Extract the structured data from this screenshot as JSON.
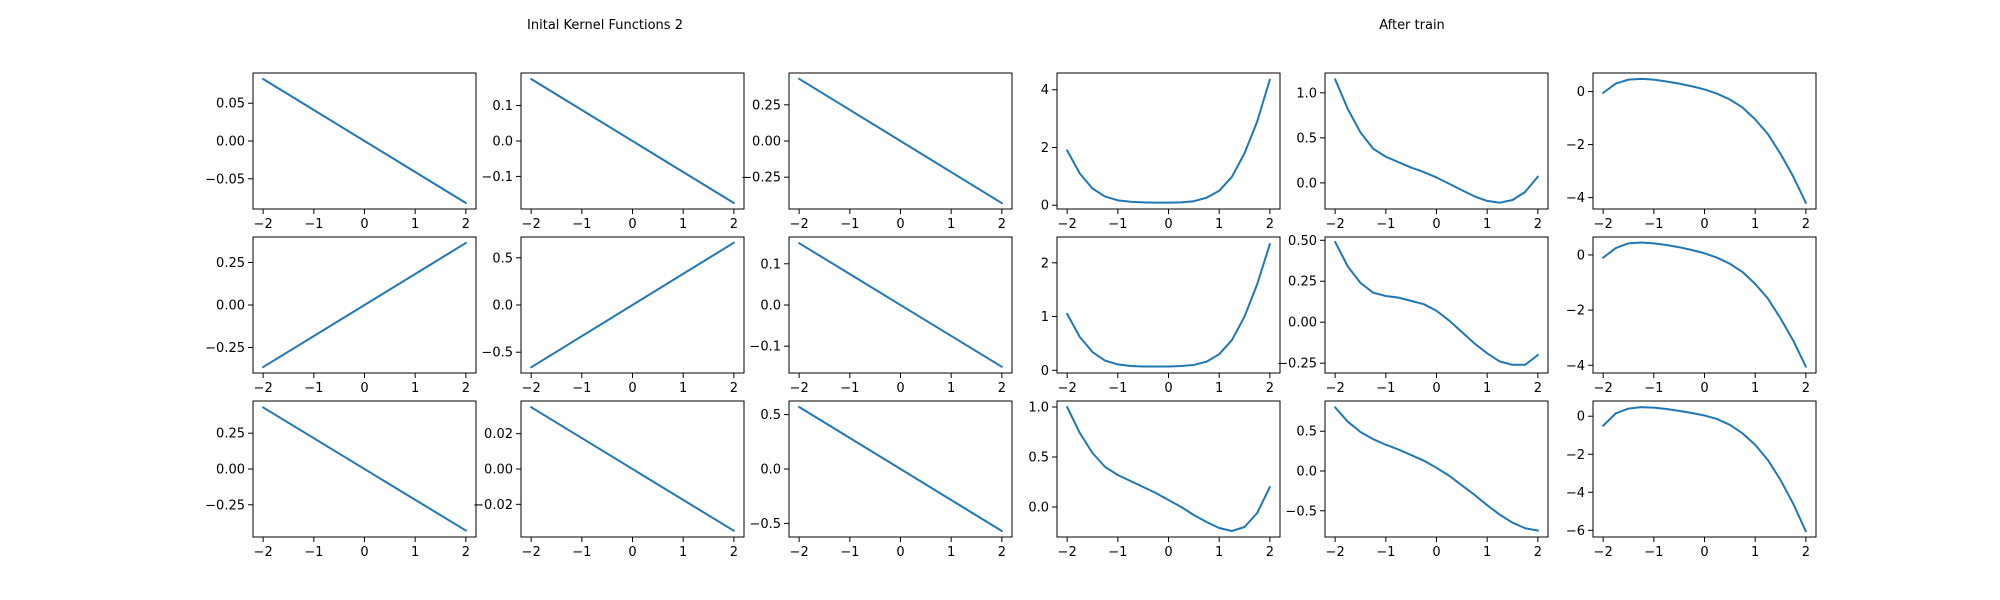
{
  "figure": {
    "left_title": "Inital Kernel Functions 2",
    "right_title": "After train"
  },
  "style": {
    "line_color": "#1f77b4",
    "axes_color": "#000000",
    "background": "#ffffff"
  },
  "chart_data": [
    {
      "type": "line",
      "group": "Inital Kernel Functions 2",
      "row": 1,
      "col": 1,
      "x": [
        -2,
        2
      ],
      "y": [
        0.082,
        -0.082
      ],
      "xlim": [
        -2.2,
        2.2
      ],
      "ylim": [
        -0.09,
        0.09
      ],
      "xticks": [
        "−2",
        "−1",
        "0",
        "1",
        "2"
      ],
      "yticks": [
        {
          "v": 0.05,
          "label": "0.05"
        },
        {
          "v": 0,
          "label": "0.00"
        },
        {
          "v": -0.05,
          "label": "−0.05"
        }
      ],
      "grid": false
    },
    {
      "type": "line",
      "group": "Inital Kernel Functions 2",
      "row": 1,
      "col": 2,
      "x": [
        -2,
        2
      ],
      "y": [
        0.175,
        -0.175
      ],
      "xlim": [
        -2.2,
        2.2
      ],
      "ylim": [
        -0.192,
        0.192
      ],
      "xticks": [
        "−2",
        "−1",
        "0",
        "1",
        "2"
      ],
      "yticks": [
        {
          "v": 0.1,
          "label": "0.1"
        },
        {
          "v": 0,
          "label": "0.0"
        },
        {
          "v": -0.1,
          "label": "−0.1"
        }
      ],
      "grid": false
    },
    {
      "type": "line",
      "group": "Inital Kernel Functions 2",
      "row": 1,
      "col": 3,
      "x": [
        -2,
        2
      ],
      "y": [
        0.43,
        -0.43
      ],
      "xlim": [
        -2.2,
        2.2
      ],
      "ylim": [
        -0.47,
        0.47
      ],
      "xticks": [
        "−2",
        "−1",
        "0",
        "1",
        "2"
      ],
      "yticks": [
        {
          "v": 0.25,
          "label": "0.25"
        },
        {
          "v": 0,
          "label": "0.00"
        },
        {
          "v": -0.25,
          "label": "−0.25"
        }
      ],
      "grid": false
    },
    {
      "type": "line",
      "group": "After train",
      "row": 1,
      "col": 4,
      "x": [
        -2,
        -1.75,
        -1.5,
        -1.25,
        -1,
        -0.75,
        -0.5,
        -0.25,
        0,
        0.25,
        0.5,
        0.75,
        1,
        1.25,
        1.5,
        1.75,
        2
      ],
      "y": [
        1.9,
        1.1,
        0.58,
        0.3,
        0.17,
        0.12,
        0.1,
        0.09,
        0.09,
        0.1,
        0.14,
        0.26,
        0.5,
        0.98,
        1.8,
        2.9,
        4.35
      ],
      "xlim": [
        -2.2,
        2.2
      ],
      "ylim": [
        -0.13,
        4.58
      ],
      "xticks": [
        "−2",
        "−1",
        "0",
        "1",
        "2"
      ],
      "yticks": [
        {
          "v": 4,
          "label": "4"
        },
        {
          "v": 2,
          "label": "2"
        },
        {
          "v": 0,
          "label": "0"
        }
      ],
      "grid": false
    },
    {
      "type": "line",
      "group": "After train",
      "row": 1,
      "col": 5,
      "x": [
        -2,
        -1.75,
        -1.5,
        -1.25,
        -1,
        -0.75,
        -0.5,
        -0.25,
        0,
        0.25,
        0.5,
        0.75,
        1,
        1.25,
        1.5,
        1.75,
        2
      ],
      "y": [
        1.15,
        0.82,
        0.56,
        0.38,
        0.29,
        0.23,
        0.17,
        0.12,
        0.06,
        -0.01,
        -0.08,
        -0.15,
        -0.2,
        -0.22,
        -0.19,
        -0.1,
        0.07
      ],
      "xlim": [
        -2.2,
        2.2
      ],
      "ylim": [
        -0.29,
        1.22
      ],
      "xticks": [
        "−2",
        "−1",
        "0",
        "1",
        "2"
      ],
      "yticks": [
        {
          "v": 1.0,
          "label": "1.0"
        },
        {
          "v": 0.5,
          "label": "0.5"
        },
        {
          "v": 0,
          "label": "0.0"
        }
      ],
      "grid": false
    },
    {
      "type": "line",
      "group": "After train",
      "row": 1,
      "col": 6,
      "x": [
        -2,
        -1.75,
        -1.5,
        -1.25,
        -1,
        -0.75,
        -0.5,
        -0.25,
        0,
        0.25,
        0.5,
        0.75,
        1,
        1.25,
        1.5,
        1.75,
        2
      ],
      "y": [
        -0.05,
        0.3,
        0.45,
        0.48,
        0.45,
        0.38,
        0.3,
        0.2,
        0.08,
        -0.08,
        -0.3,
        -0.6,
        -1.05,
        -1.6,
        -2.35,
        -3.2,
        -4.2
      ],
      "xlim": [
        -2.2,
        2.2
      ],
      "ylim": [
        -4.43,
        0.7
      ],
      "xticks": [
        "−2",
        "−1",
        "0",
        "1",
        "2"
      ],
      "yticks": [
        {
          "v": 0,
          "label": "0"
        },
        {
          "v": -2,
          "label": "−2"
        },
        {
          "v": -4,
          "label": "−4"
        }
      ],
      "grid": false
    },
    {
      "type": "line",
      "group": "Inital Kernel Functions 2",
      "row": 2,
      "col": 1,
      "x": [
        -2,
        2
      ],
      "y": [
        -0.365,
        0.365
      ],
      "xlim": [
        -2.2,
        2.2
      ],
      "ylim": [
        -0.4,
        0.4
      ],
      "xticks": [
        "−2",
        "−1",
        "0",
        "1",
        "2"
      ],
      "yticks": [
        {
          "v": 0.25,
          "label": "0.25"
        },
        {
          "v": 0,
          "label": "0.00"
        },
        {
          "v": -0.25,
          "label": "−0.25"
        }
      ],
      "grid": false
    },
    {
      "type": "line",
      "group": "Inital Kernel Functions 2",
      "row": 2,
      "col": 2,
      "x": [
        -2,
        2
      ],
      "y": [
        -0.66,
        0.66
      ],
      "xlim": [
        -2.2,
        2.2
      ],
      "ylim": [
        -0.72,
        0.72
      ],
      "xticks": [
        "−2",
        "−1",
        "0",
        "1",
        "2"
      ],
      "yticks": [
        {
          "v": 0.5,
          "label": "0.5"
        },
        {
          "v": 0,
          "label": "0.0"
        },
        {
          "v": -0.5,
          "label": "−0.5"
        }
      ],
      "grid": false
    },
    {
      "type": "line",
      "group": "Inital Kernel Functions 2",
      "row": 2,
      "col": 3,
      "x": [
        -2,
        2
      ],
      "y": [
        0.15,
        -0.15
      ],
      "xlim": [
        -2.2,
        2.2
      ],
      "ylim": [
        -0.165,
        0.165
      ],
      "xticks": [
        "−2",
        "−1",
        "0",
        "1",
        "2"
      ],
      "yticks": [
        {
          "v": 0.1,
          "label": "0.1"
        },
        {
          "v": 0,
          "label": "0.0"
        },
        {
          "v": -0.1,
          "label": "−0.1"
        }
      ],
      "grid": false
    },
    {
      "type": "line",
      "group": "After train",
      "row": 2,
      "col": 4,
      "x": [
        -2,
        -1.75,
        -1.5,
        -1.25,
        -1,
        -0.75,
        -0.5,
        -0.25,
        0,
        0.25,
        0.5,
        0.75,
        1,
        1.25,
        1.5,
        1.75,
        2
      ],
      "y": [
        1.05,
        0.62,
        0.34,
        0.18,
        0.11,
        0.08,
        0.07,
        0.07,
        0.07,
        0.08,
        0.1,
        0.16,
        0.3,
        0.56,
        1.0,
        1.6,
        2.35
      ],
      "xlim": [
        -2.2,
        2.2
      ],
      "ylim": [
        -0.05,
        2.48
      ],
      "xticks": [
        "−2",
        "−1",
        "0",
        "1",
        "2"
      ],
      "yticks": [
        {
          "v": 2,
          "label": "2"
        },
        {
          "v": 1,
          "label": "1"
        },
        {
          "v": 0,
          "label": "0"
        }
      ],
      "grid": false
    },
    {
      "type": "line",
      "group": "After train",
      "row": 2,
      "col": 5,
      "x": [
        -2,
        -1.75,
        -1.5,
        -1.25,
        -1,
        -0.75,
        -0.5,
        -0.25,
        0,
        0.25,
        0.5,
        0.75,
        1,
        1.25,
        1.5,
        1.75,
        2
      ],
      "y": [
        0.49,
        0.34,
        0.24,
        0.18,
        0.16,
        0.15,
        0.13,
        0.11,
        0.07,
        0.01,
        -0.06,
        -0.13,
        -0.19,
        -0.24,
        -0.26,
        -0.26,
        -0.2
      ],
      "xlim": [
        -2.2,
        2.2
      ],
      "ylim": [
        -0.31,
        0.52
      ],
      "xticks": [
        "−2",
        "−1",
        "0",
        "1",
        "2"
      ],
      "yticks": [
        {
          "v": 0.5,
          "label": "0.50"
        },
        {
          "v": 0.25,
          "label": "0.25"
        },
        {
          "v": 0,
          "label": "0.00"
        },
        {
          "v": -0.25,
          "label": "−0.25"
        }
      ],
      "grid": false
    },
    {
      "type": "line",
      "group": "After train",
      "row": 2,
      "col": 6,
      "x": [
        -2,
        -1.75,
        -1.5,
        -1.25,
        -1,
        -0.75,
        -0.5,
        -0.25,
        0,
        0.25,
        0.5,
        0.75,
        1,
        1.25,
        1.5,
        1.75,
        2
      ],
      "y": [
        -0.1,
        0.25,
        0.42,
        0.45,
        0.42,
        0.36,
        0.28,
        0.18,
        0.06,
        -0.1,
        -0.32,
        -0.62,
        -1.05,
        -1.58,
        -2.3,
        -3.1,
        -4.05
      ],
      "xlim": [
        -2.2,
        2.2
      ],
      "ylim": [
        -4.28,
        0.65
      ],
      "xticks": [
        "−2",
        "−1",
        "0",
        "1",
        "2"
      ],
      "yticks": [
        {
          "v": 0,
          "label": "0"
        },
        {
          "v": -2,
          "label": "−2"
        },
        {
          "v": -4,
          "label": "−4"
        }
      ],
      "grid": false
    },
    {
      "type": "line",
      "group": "Inital Kernel Functions 2",
      "row": 3,
      "col": 1,
      "x": [
        -2,
        2
      ],
      "y": [
        0.43,
        -0.43
      ],
      "xlim": [
        -2.2,
        2.2
      ],
      "ylim": [
        -0.475,
        0.475
      ],
      "xticks": [
        "−2",
        "−1",
        "0",
        "1",
        "2"
      ],
      "yticks": [
        {
          "v": 0.25,
          "label": "0.25"
        },
        {
          "v": 0,
          "label": "0.00"
        },
        {
          "v": -0.25,
          "label": "−0.25"
        }
      ],
      "grid": false
    },
    {
      "type": "line",
      "group": "Inital Kernel Functions 2",
      "row": 3,
      "col": 2,
      "x": [
        -2,
        2
      ],
      "y": [
        0.035,
        -0.035
      ],
      "xlim": [
        -2.2,
        2.2
      ],
      "ylim": [
        -0.0385,
        0.0385
      ],
      "xticks": [
        "−2",
        "−1",
        "0",
        "1",
        "2"
      ],
      "yticks": [
        {
          "v": 0.02,
          "label": "0.02"
        },
        {
          "v": 0,
          "label": "0.00"
        },
        {
          "v": -0.02,
          "label": "−0.02"
        }
      ],
      "grid": false
    },
    {
      "type": "line",
      "group": "Inital Kernel Functions 2",
      "row": 3,
      "col": 3,
      "x": [
        -2,
        2
      ],
      "y": [
        0.57,
        -0.57
      ],
      "xlim": [
        -2.2,
        2.2
      ],
      "ylim": [
        -0.625,
        0.625
      ],
      "xticks": [
        "−2",
        "−1",
        "0",
        "1",
        "2"
      ],
      "yticks": [
        {
          "v": 0.5,
          "label": "0.5"
        },
        {
          "v": 0,
          "label": "0.0"
        },
        {
          "v": -0.5,
          "label": "−0.5"
        }
      ],
      "grid": false
    },
    {
      "type": "line",
      "group": "After train",
      "row": 3,
      "col": 4,
      "x": [
        -2,
        -1.75,
        -1.5,
        -1.25,
        -1,
        -0.75,
        -0.5,
        -0.25,
        0,
        0.25,
        0.5,
        0.75,
        1,
        1.25,
        1.5,
        1.75,
        2
      ],
      "y": [
        1.0,
        0.74,
        0.54,
        0.4,
        0.32,
        0.26,
        0.2,
        0.14,
        0.07,
        0.0,
        -0.08,
        -0.15,
        -0.21,
        -0.24,
        -0.2,
        -0.06,
        0.2
      ],
      "xlim": [
        -2.2,
        2.2
      ],
      "ylim": [
        -0.3,
        1.06
      ],
      "xticks": [
        "−2",
        "−1",
        "0",
        "1",
        "2"
      ],
      "yticks": [
        {
          "v": 1.0,
          "label": "1.0"
        },
        {
          "v": 0.5,
          "label": "0.5"
        },
        {
          "v": 0,
          "label": "0.0"
        }
      ],
      "grid": false
    },
    {
      "type": "line",
      "group": "After train",
      "row": 3,
      "col": 5,
      "x": [
        -2,
        -1.75,
        -1.5,
        -1.25,
        -1,
        -0.75,
        -0.5,
        -0.25,
        0,
        0.25,
        0.5,
        0.75,
        1,
        1.25,
        1.5,
        1.75,
        2
      ],
      "y": [
        0.8,
        0.62,
        0.49,
        0.4,
        0.33,
        0.27,
        0.2,
        0.13,
        0.04,
        -0.06,
        -0.18,
        -0.3,
        -0.43,
        -0.55,
        -0.65,
        -0.72,
        -0.75
      ],
      "xlim": [
        -2.2,
        2.2
      ],
      "ylim": [
        -0.83,
        0.88
      ],
      "xticks": [
        "−2",
        "−1",
        "0",
        "1",
        "2"
      ],
      "yticks": [
        {
          "v": 0.5,
          "label": "0.5"
        },
        {
          "v": 0,
          "label": "0.0"
        },
        {
          "v": -0.5,
          "label": "−0.5"
        }
      ],
      "grid": false
    },
    {
      "type": "line",
      "group": "After train",
      "row": 3,
      "col": 6,
      "x": [
        -2,
        -1.75,
        -1.5,
        -1.25,
        -1,
        -0.75,
        -0.5,
        -0.25,
        0,
        0.25,
        0.5,
        0.75,
        1,
        1.25,
        1.5,
        1.75,
        2
      ],
      "y": [
        -0.5,
        0.15,
        0.4,
        0.48,
        0.45,
        0.38,
        0.28,
        0.17,
        0.04,
        -0.15,
        -0.45,
        -0.9,
        -1.5,
        -2.3,
        -3.35,
        -4.6,
        -6.05
      ],
      "xlim": [
        -2.2,
        2.2
      ],
      "ylim": [
        -6.35,
        0.8
      ],
      "xticks": [
        "−2",
        "−1",
        "0",
        "1",
        "2"
      ],
      "yticks": [
        {
          "v": 0,
          "label": "0"
        },
        {
          "v": -2,
          "label": "−2"
        },
        {
          "v": -4,
          "label": "−4"
        },
        {
          "v": -6,
          "label": "−6"
        }
      ],
      "grid": false
    }
  ]
}
